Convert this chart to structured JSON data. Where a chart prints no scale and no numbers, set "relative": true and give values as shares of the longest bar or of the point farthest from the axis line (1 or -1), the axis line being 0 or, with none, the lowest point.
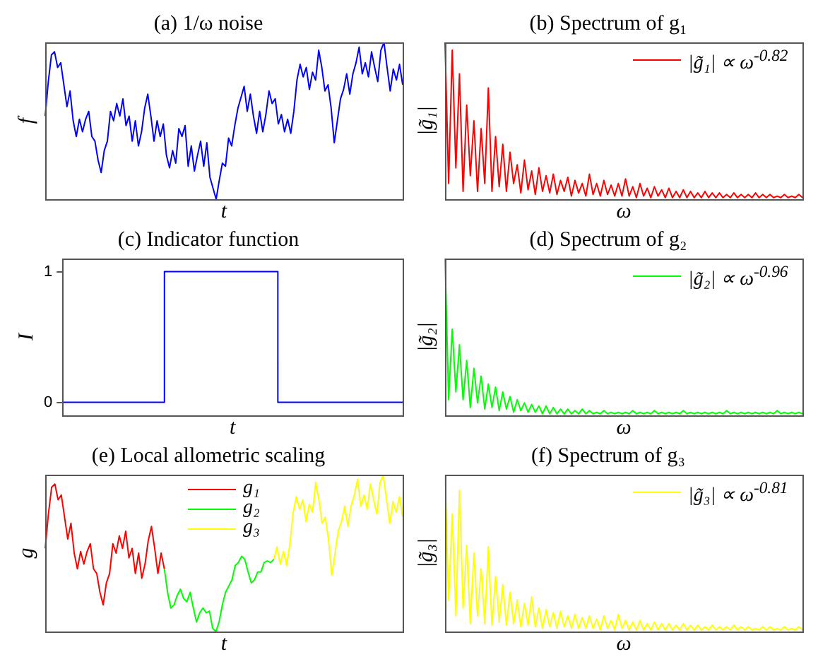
{
  "chart_data": [
    {
      "type": "line",
      "title": "(a) 1/ω noise",
      "xlabel": "t",
      "ylabel": "f",
      "relative": true,
      "tick_labels": false,
      "categories": [
        null,
        null,
        null,
        null,
        null,
        null,
        null,
        null,
        null,
        null,
        null,
        null,
        null,
        null,
        null,
        null,
        null,
        null,
        null,
        null,
        null,
        null,
        null,
        null,
        null,
        null,
        null,
        null,
        null,
        null,
        null,
        null,
        null,
        null,
        null,
        null,
        null,
        null,
        null,
        null,
        null,
        null,
        null,
        null,
        null,
        null,
        null,
        null,
        null,
        null,
        null,
        null,
        null,
        null,
        null,
        null,
        null,
        null,
        null,
        null,
        null,
        null,
        null,
        null,
        null,
        null,
        null,
        null,
        null,
        null,
        null,
        null,
        null,
        null,
        null,
        null,
        null,
        null,
        null,
        null,
        null,
        null,
        null,
        null,
        null,
        null,
        null,
        null,
        null,
        null,
        null,
        null,
        null,
        null,
        null,
        null,
        null,
        null,
        null,
        null,
        null,
        null,
        null,
        null,
        null,
        null,
        null,
        null,
        null,
        null,
        null,
        null,
        null,
        null,
        null,
        null
      ],
      "series": [
        {
          "color": "#0000ff",
          "values": [
            0.53,
            0.75,
            0.92,
            0.94,
            0.84,
            0.87,
            0.73,
            0.59,
            0.69,
            0.5,
            0.4,
            0.51,
            0.43,
            0.51,
            0.56,
            0.4,
            0.37,
            0.25,
            0.17,
            0.31,
            0.37,
            0.56,
            0.5,
            0.61,
            0.53,
            0.64,
            0.47,
            0.53,
            0.37,
            0.5,
            0.34,
            0.43,
            0.58,
            0.67,
            0.53,
            0.37,
            0.5,
            0.4,
            0.48,
            0.28,
            0.2,
            0.31,
            0.23,
            0.45,
            0.4,
            0.47,
            0.21,
            0.34,
            0.18,
            0.28,
            0.37,
            0.21,
            0.36,
            0.14,
            0.07,
            0,
            0.12,
            0.23,
            0.21,
            0.39,
            0.34,
            0.47,
            0.58,
            0.65,
            0.72,
            0.56,
            0.67,
            0.53,
            0.42,
            0.56,
            0.43,
            0.54,
            0.69,
            0.61,
            0.64,
            0.48,
            0.54,
            0.43,
            0.51,
            0.42,
            0.56,
            0.76,
            0.86,
            0.78,
            0.84,
            0.7,
            0.81,
            0.76,
            0.95,
            0.84,
            0.69,
            0.73,
            0.58,
            0.36,
            0.5,
            0.64,
            0.7,
            0.8,
            0.67,
            0.8,
            0.87,
            0.97,
            0.8,
            0.87,
            0.78,
            0.94,
            0.84,
            0.75,
            0.95,
            1,
            0.84,
            0.69,
            0.83,
            0.76,
            0.86,
            0.73
          ]
        }
      ]
    },
    {
      "type": "line",
      "title": "(b) Spectrum of g₁",
      "xlabel": "ω",
      "ylabel": "|g̃₁|",
      "relative": true,
      "tick_labels": false,
      "legend": "top right",
      "categories": [
        null,
        null,
        null,
        null,
        null,
        null,
        null,
        null,
        null,
        null,
        null,
        null,
        null,
        null,
        null,
        null,
        null,
        null,
        null,
        null,
        null,
        null,
        null,
        null,
        null,
        null,
        null,
        null,
        null,
        null,
        null,
        null,
        null,
        null,
        null,
        null,
        null,
        null,
        null,
        null,
        null,
        null,
        null,
        null,
        null,
        null,
        null,
        null,
        null,
        null,
        null,
        null,
        null,
        null,
        null,
        null,
        null,
        null,
        null,
        null,
        null,
        null,
        null,
        null,
        null,
        null,
        null,
        null,
        null,
        null,
        null,
        null,
        null,
        null,
        null,
        null,
        null,
        null,
        null,
        null,
        null,
        null,
        null,
        null,
        null,
        null,
        null,
        null,
        null,
        null,
        null,
        null,
        null,
        null,
        null,
        null,
        null,
        null,
        null,
        null
      ],
      "series": [
        {
          "name": "|g̃₁| ∝ ω$^{-0.82}$",
          "color": "#ff0000",
          "values": [
            1,
            0.1,
            0.95,
            0.2,
            0.8,
            0.05,
            0.6,
            0.15,
            0.5,
            0.05,
            0.45,
            0.1,
            0.71,
            0.05,
            0.4,
            0.08,
            0.35,
            0.05,
            0.3,
            0.1,
            0.22,
            0.04,
            0.25,
            0.06,
            0.18,
            0.03,
            0.2,
            0.05,
            0.15,
            0.04,
            0.16,
            0.03,
            0.12,
            0.05,
            0.14,
            0.02,
            0.12,
            0.04,
            0.1,
            0.02,
            0.16,
            0.03,
            0.1,
            0.02,
            0.12,
            0.03,
            0.09,
            0.02,
            0.1,
            0.02,
            0.13,
            0.02,
            0.08,
            0.01,
            0.1,
            0.02,
            0.07,
            0.01,
            0.08,
            0.02,
            0.06,
            0.01,
            0.07,
            0.01,
            0.05,
            0.01,
            0.06,
            0.01,
            0.05,
            0.01,
            0.04,
            0.01,
            0.05,
            0.01,
            0.04,
            0.01,
            0.04,
            0.01,
            0.03,
            0.01,
            0.04,
            0.01,
            0.03,
            0.01,
            0.03,
            0.01,
            0.04,
            0.01,
            0.03,
            0.01,
            0.03,
            0.01,
            0.02,
            0.01,
            0.03,
            0.01,
            0.02,
            0.01,
            0.03,
            0.01
          ]
        }
      ]
    },
    {
      "type": "step",
      "title": "(c) Indicator function",
      "xlabel": "t",
      "ylabel": "I",
      "tick_labels": "y",
      "ylim": [
        -0.1,
        1.1
      ],
      "yticks": [
        0,
        1
      ],
      "categories": [
        null,
        null,
        null,
        null,
        null,
        null,
        null,
        null,
        null,
        null,
        null,
        null,
        null,
        null,
        null,
        null,
        null,
        null,
        null,
        null,
        null,
        null,
        null,
        null,
        null,
        null,
        null,
        null,
        null,
        null,
        null
      ],
      "series": [
        {
          "color": "#0000ff",
          "values": [
            0,
            0,
            0,
            0,
            0,
            0,
            0,
            0,
            0,
            0,
            1,
            1,
            1,
            1,
            1,
            1,
            1,
            1,
            1,
            1,
            0,
            0,
            0,
            0,
            0,
            0,
            0,
            0,
            0,
            0,
            0
          ]
        }
      ]
    },
    {
      "type": "line",
      "title": "(d) Spectrum of g₂",
      "xlabel": "ω",
      "ylabel": "|g̃₂|",
      "relative": true,
      "tick_labels": false,
      "legend": "top right",
      "categories": [
        null,
        null,
        null,
        null,
        null,
        null,
        null,
        null,
        null,
        null,
        null,
        null,
        null,
        null,
        null,
        null,
        null,
        null,
        null,
        null,
        null,
        null,
        null,
        null,
        null,
        null,
        null,
        null,
        null,
        null,
        null,
        null,
        null,
        null,
        null,
        null,
        null,
        null,
        null,
        null,
        null,
        null,
        null,
        null,
        null,
        null,
        null,
        null,
        null,
        null,
        null,
        null,
        null,
        null,
        null,
        null,
        null,
        null,
        null,
        null,
        null,
        null,
        null,
        null,
        null,
        null,
        null,
        null,
        null,
        null,
        null,
        null,
        null,
        null,
        null,
        null,
        null,
        null,
        null,
        null,
        null,
        null,
        null,
        null,
        null,
        null,
        null,
        null,
        null,
        null,
        null,
        null,
        null,
        null,
        null,
        null,
        null,
        null,
        null,
        null
      ],
      "series": [
        {
          "name": "|g̃₂| ∝ ω$^{-0.96}$",
          "color": "#00ff00",
          "values": [
            1,
            0.1,
            0.55,
            0.15,
            0.45,
            0.1,
            0.35,
            0.05,
            0.3,
            0.08,
            0.25,
            0.04,
            0.2,
            0.05,
            0.18,
            0.03,
            0.15,
            0.04,
            0.12,
            0.02,
            0.1,
            0.03,
            0.08,
            0.02,
            0.07,
            0.02,
            0.06,
            0.01,
            0.06,
            0.01,
            0.05,
            0.01,
            0.04,
            0.01,
            0.04,
            0.01,
            0.03,
            0.01,
            0.04,
            0.01,
            0.03,
            0.01,
            0.02,
            0.01,
            0.03,
            0.01,
            0.02,
            0.01,
            0.02,
            0.01,
            0.02,
            0.01,
            0.03,
            0.01,
            0.02,
            0.01,
            0.02,
            0.01,
            0.03,
            0.01,
            0.02,
            0.01,
            0.02,
            0.01,
            0.02,
            0.01,
            0.03,
            0.01,
            0.02,
            0.01,
            0.02,
            0.01,
            0.02,
            0.01,
            0.02,
            0.01,
            0.02,
            0.01,
            0.03,
            0.01,
            0.02,
            0.01,
            0.02,
            0.01,
            0.02,
            0.01,
            0.02,
            0.01,
            0.02,
            0.01,
            0.02,
            0.01,
            0.03,
            0.01,
            0.02,
            0.01,
            0.02,
            0.01,
            0.02,
            0.01
          ]
        }
      ]
    },
    {
      "type": "line",
      "title": "(e) Local allometric scaling",
      "xlabel": "t",
      "ylabel": "g",
      "relative": true,
      "tick_labels": false,
      "legend": "top",
      "categories": [
        null,
        null,
        null,
        null,
        null,
        null,
        null,
        null,
        null,
        null,
        null,
        null,
        null,
        null,
        null,
        null,
        null,
        null,
        null,
        null,
        null,
        null,
        null,
        null,
        null,
        null,
        null,
        null,
        null,
        null,
        null,
        null,
        null,
        null,
        null,
        null,
        null,
        null,
        null,
        null,
        null,
        null,
        null,
        null,
        null,
        null,
        null,
        null,
        null,
        null,
        null,
        null,
        null,
        null,
        null,
        null,
        null,
        null,
        null,
        null,
        null,
        null,
        null,
        null,
        null,
        null,
        null,
        null,
        null,
        null,
        null,
        null,
        null,
        null,
        null,
        null,
        null,
        null,
        null,
        null,
        null,
        null,
        null,
        null,
        null,
        null,
        null,
        null,
        null,
        null,
        null,
        null,
        null,
        null,
        null,
        null,
        null,
        null,
        null,
        null,
        null,
        null,
        null,
        null,
        null,
        null,
        null,
        null,
        null,
        null,
        null,
        null
      ],
      "series": [
        {
          "name": "g₁",
          "color": "#ff0000",
          "values": [
            0.53,
            0.75,
            0.92,
            0.94,
            0.84,
            0.87,
            0.73,
            0.59,
            0.69,
            0.5,
            0.4,
            0.51,
            0.43,
            0.51,
            0.56,
            0.4,
            0.37,
            0.25,
            0.17,
            0.31,
            0.37,
            0.56,
            0.5,
            0.61,
            0.53,
            0.64,
            0.47,
            0.53,
            0.37,
            0.5,
            0.34,
            0.43,
            0.58,
            0.67,
            0.53,
            0.37,
            0.5,
            0.4,
            null,
            null,
            null,
            null,
            null,
            null,
            null,
            null,
            null,
            null,
            null,
            null,
            null,
            null,
            null,
            null,
            null,
            null,
            null,
            null,
            null,
            null,
            null,
            null,
            null,
            null,
            null,
            null,
            null,
            null,
            null,
            null,
            null,
            null,
            null,
            null,
            null,
            null,
            null,
            null,
            null,
            null,
            null,
            null,
            null,
            null,
            null,
            null,
            null,
            null,
            null,
            null,
            null,
            null,
            null,
            null,
            null,
            null,
            null,
            null,
            null,
            null,
            null,
            null,
            null,
            null,
            null,
            null,
            null,
            null,
            null,
            null,
            null,
            null
          ]
        },
        {
          "name": "g₂",
          "color": "#00ff00",
          "values": [
            null,
            null,
            null,
            null,
            null,
            null,
            null,
            null,
            null,
            null,
            null,
            null,
            null,
            null,
            null,
            null,
            null,
            null,
            null,
            null,
            null,
            null,
            null,
            null,
            null,
            null,
            null,
            null,
            null,
            null,
            null,
            null,
            null,
            null,
            null,
            null,
            null,
            0.4,
            0.25,
            0.15,
            0.17,
            0.23,
            0.27,
            0.21,
            0.19,
            0.25,
            0.15,
            0.06,
            0.12,
            0.15,
            0.12,
            0.13,
            0.02,
            0,
            0.06,
            0.17,
            0.25,
            0.29,
            0.33,
            0.42,
            0.44,
            0.48,
            0.46,
            0.38,
            0.31,
            0.33,
            0.38,
            0.38,
            0.44,
            0.45,
            0.44,
            0.46,
            null,
            null,
            null,
            null,
            null,
            null,
            null,
            null,
            null,
            null,
            null,
            null,
            null,
            null,
            null,
            null,
            null,
            null,
            null,
            null,
            null,
            null,
            null,
            null,
            null,
            null,
            null,
            null,
            null,
            null,
            null,
            null,
            null,
            null,
            null,
            null,
            null,
            null,
            null,
            null
          ]
        },
        {
          "name": "g₃",
          "color": "#ffff00",
          "values": [
            null,
            null,
            null,
            null,
            null,
            null,
            null,
            null,
            null,
            null,
            null,
            null,
            null,
            null,
            null,
            null,
            null,
            null,
            null,
            null,
            null,
            null,
            null,
            null,
            null,
            null,
            null,
            null,
            null,
            null,
            null,
            null,
            null,
            null,
            null,
            null,
            null,
            null,
            null,
            null,
            null,
            null,
            null,
            null,
            null,
            null,
            null,
            null,
            null,
            null,
            null,
            null,
            null,
            null,
            null,
            null,
            null,
            null,
            null,
            null,
            null,
            null,
            null,
            null,
            null,
            null,
            null,
            null,
            null,
            null,
            null,
            0.46,
            0.54,
            0.43,
            0.51,
            0.42,
            0.56,
            0.76,
            0.86,
            0.78,
            0.84,
            0.7,
            0.81,
            0.76,
            0.95,
            0.84,
            0.69,
            0.73,
            0.58,
            0.36,
            0.5,
            0.64,
            0.7,
            0.8,
            0.67,
            0.8,
            0.87,
            0.97,
            0.8,
            0.87,
            0.78,
            0.94,
            0.84,
            0.75,
            0.95,
            1,
            0.84,
            0.69,
            0.83,
            0.76,
            0.86,
            0.73
          ]
        }
      ]
    },
    {
      "type": "line",
      "title": "(f) Spectrum of g₃",
      "xlabel": "ω",
      "ylabel": "|g̃₃|",
      "relative": true,
      "tick_labels": false,
      "legend": "top right",
      "categories": [
        null,
        null,
        null,
        null,
        null,
        null,
        null,
        null,
        null,
        null,
        null,
        null,
        null,
        null,
        null,
        null,
        null,
        null,
        null,
        null,
        null,
        null,
        null,
        null,
        null,
        null,
        null,
        null,
        null,
        null,
        null,
        null,
        null,
        null,
        null,
        null,
        null,
        null,
        null,
        null,
        null,
        null,
        null,
        null,
        null,
        null,
        null,
        null,
        null,
        null,
        null,
        null,
        null,
        null,
        null,
        null,
        null,
        null,
        null,
        null,
        null,
        null,
        null,
        null,
        null,
        null,
        null,
        null,
        null,
        null,
        null,
        null,
        null,
        null,
        null,
        null,
        null,
        null,
        null,
        null,
        null,
        null,
        null,
        null,
        null,
        null,
        null,
        null,
        null,
        null,
        null,
        null,
        null,
        null,
        null,
        null,
        null,
        null,
        null,
        null
      ],
      "series": [
        {
          "name": "|g̃₃| ∝ ω$^{-0.81}$",
          "color": "#ffff00",
          "values": [
            1,
            0.2,
            0.75,
            0.1,
            0.9,
            0.15,
            0.55,
            0.05,
            0.5,
            0.1,
            0.4,
            0.05,
            0.54,
            0.04,
            0.35,
            0.06,
            0.3,
            0.04,
            0.25,
            0.05,
            0.2,
            0.03,
            0.18,
            0.04,
            0.22,
            0.03,
            0.15,
            0.02,
            0.14,
            0.03,
            0.12,
            0.02,
            0.13,
            0.03,
            0.1,
            0.02,
            0.11,
            0.02,
            0.09,
            0.02,
            0.1,
            0.02,
            0.08,
            0.01,
            0.1,
            0.02,
            0.07,
            0.01,
            0.11,
            0.02,
            0.07,
            0.01,
            0.06,
            0.01,
            0.07,
            0.01,
            0.05,
            0.01,
            0.06,
            0.01,
            0.05,
            0.01,
            0.05,
            0.01,
            0.04,
            0.01,
            0.05,
            0.01,
            0.04,
            0.01,
            0.04,
            0.01,
            0.03,
            0.01,
            0.04,
            0.01,
            0.03,
            0.01,
            0.03,
            0.01,
            0.04,
            0.01,
            0.03,
            0.01,
            0.03,
            0.01,
            0.02,
            0.01,
            0.03,
            0.01,
            0.03,
            0.01,
            0.02,
            0.01,
            0.03,
            0.01,
            0.02,
            0.01,
            0.03,
            0.01
          ]
        }
      ]
    }
  ]
}
